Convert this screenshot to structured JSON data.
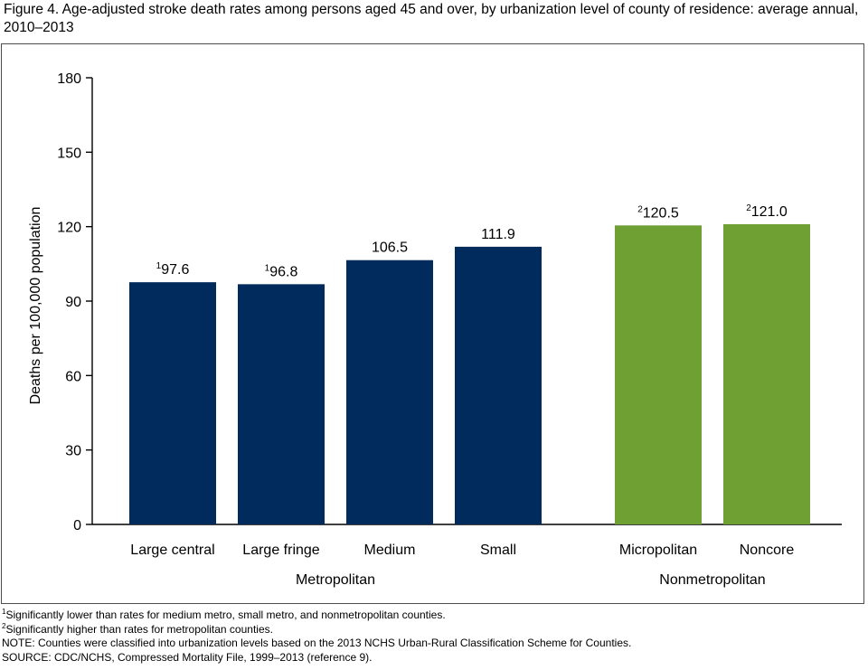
{
  "title": "Figure 4. Age-adjusted stroke death rates among persons aged 45 and over, by urbanization level of county of residence: average annual, 2010–2013",
  "chart_data": {
    "type": "bar",
    "ylabel": "Deaths per 100,000 population",
    "ylim": [
      0,
      180
    ],
    "yticks": [
      "0",
      "30",
      "60",
      "90",
      "120",
      "150",
      "180"
    ],
    "grid": false,
    "categories": [
      "Large central",
      "Large fringe",
      "Medium",
      "Small",
      "Micropolitan",
      "Noncore"
    ],
    "values": [
      97.6,
      96.8,
      106.5,
      111.9,
      120.5,
      121.0
    ],
    "value_labels": [
      "97.6",
      "96.8",
      "106.5",
      "111.9",
      "120.5",
      "121.0"
    ],
    "footnote_marks": [
      "1",
      "1",
      "",
      "",
      "2",
      "2"
    ],
    "groups": [
      {
        "label": "Metropolitan",
        "members": [
          0,
          1,
          2,
          3
        ],
        "color": "#002b5c"
      },
      {
        "label": "Nonmetropolitan",
        "members": [
          4,
          5
        ],
        "color": "#6ea033"
      }
    ]
  },
  "notes": [
    {
      "mark": "1",
      "text": "Significantly lower than rates for medium metro, small metro, and nonmetropolitan counties."
    },
    {
      "mark": "2",
      "text": "Significantly higher than rates for metropolitan counties."
    },
    {
      "mark": "",
      "text": "NOTE: Counties were classified into urbanization levels based on the 2013 NCHS Urban-Rural Classification Scheme for Counties."
    },
    {
      "mark": "",
      "text": "SOURCE: CDC/NCHS, Compressed Mortality File, 1999–2013 (reference 9)."
    }
  ]
}
